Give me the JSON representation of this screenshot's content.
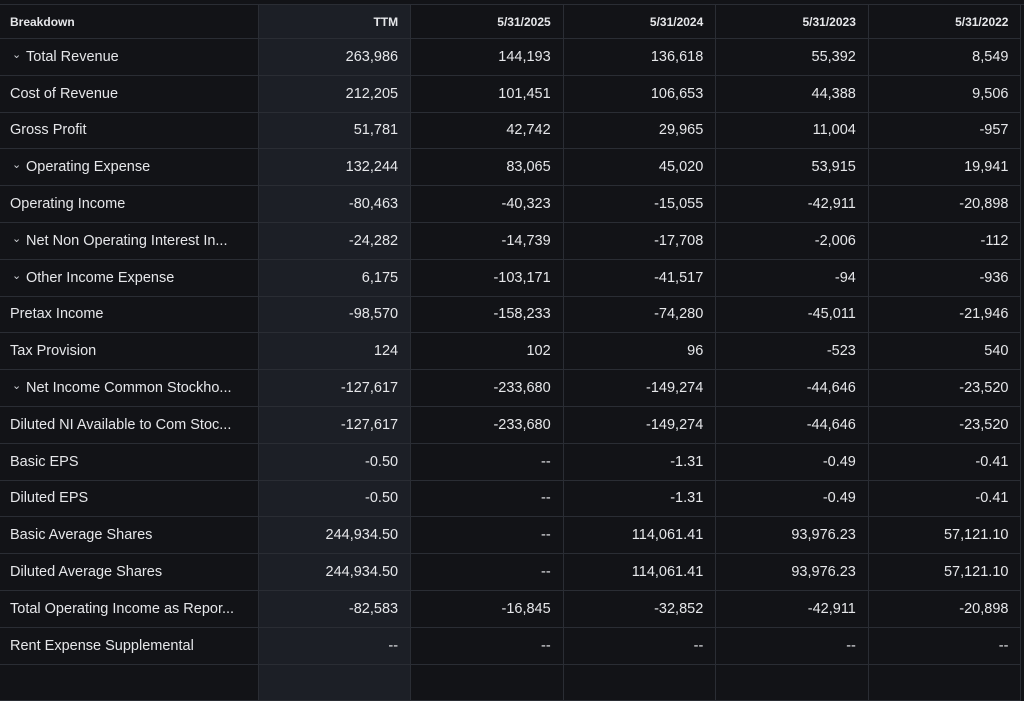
{
  "header": {
    "breakdown": "Breakdown",
    "columns": [
      "TTM",
      "5/31/2025",
      "5/31/2024",
      "5/31/2023",
      "5/31/2022"
    ]
  },
  "rows": [
    {
      "label": "Total Revenue",
      "expandable": true,
      "values": [
        "263,986",
        "144,193",
        "136,618",
        "55,392",
        "8,549"
      ]
    },
    {
      "label": "Cost of Revenue",
      "expandable": false,
      "values": [
        "212,205",
        "101,451",
        "106,653",
        "44,388",
        "9,506"
      ]
    },
    {
      "label": "Gross Profit",
      "expandable": false,
      "values": [
        "51,781",
        "42,742",
        "29,965",
        "11,004",
        "-957"
      ]
    },
    {
      "label": "Operating Expense",
      "expandable": true,
      "values": [
        "132,244",
        "83,065",
        "45,020",
        "53,915",
        "19,941"
      ]
    },
    {
      "label": "Operating Income",
      "expandable": false,
      "values": [
        "-80,463",
        "-40,323",
        "-15,055",
        "-42,911",
        "-20,898"
      ]
    },
    {
      "label": "Net Non Operating Interest In...",
      "expandable": true,
      "values": [
        "-24,282",
        "-14,739",
        "-17,708",
        "-2,006",
        "-112"
      ]
    },
    {
      "label": "Other Income Expense",
      "expandable": true,
      "values": [
        "6,175",
        "-103,171",
        "-41,517",
        "-94",
        "-936"
      ]
    },
    {
      "label": "Pretax Income",
      "expandable": false,
      "values": [
        "-98,570",
        "-158,233",
        "-74,280",
        "-45,011",
        "-21,946"
      ]
    },
    {
      "label": "Tax Provision",
      "expandable": false,
      "values": [
        "124",
        "102",
        "96",
        "-523",
        "540"
      ]
    },
    {
      "label": "Net Income Common Stockho...",
      "expandable": true,
      "values": [
        "-127,617",
        "-233,680",
        "-149,274",
        "-44,646",
        "-23,520"
      ]
    },
    {
      "label": "Diluted NI Available to Com Stoc...",
      "expandable": false,
      "values": [
        "-127,617",
        "-233,680",
        "-149,274",
        "-44,646",
        "-23,520"
      ]
    },
    {
      "label": "Basic EPS",
      "expandable": false,
      "values": [
        "-0.50",
        "--",
        "-1.31",
        "-0.49",
        "-0.41"
      ]
    },
    {
      "label": "Diluted EPS",
      "expandable": false,
      "values": [
        "-0.50",
        "--",
        "-1.31",
        "-0.49",
        "-0.41"
      ]
    },
    {
      "label": "Basic Average Shares",
      "expandable": false,
      "values": [
        "244,934.50",
        "--",
        "114,061.41",
        "93,976.23",
        "57,121.10"
      ]
    },
    {
      "label": "Diluted Average Shares",
      "expandable": false,
      "values": [
        "244,934.50",
        "--",
        "114,061.41",
        "93,976.23",
        "57,121.10"
      ]
    },
    {
      "label": "Total Operating Income as Repor...",
      "expandable": false,
      "values": [
        "-82,583",
        "-16,845",
        "-32,852",
        "-42,911",
        "-20,898"
      ]
    },
    {
      "label": "Rent Expense Supplemental",
      "expandable": false,
      "values": [
        "--",
        "--",
        "--",
        "--",
        "--"
      ]
    }
  ],
  "icons": {
    "expand": "chevron-down-icon"
  },
  "colors": {
    "background": "#121317",
    "ttm_column": "#1c1f26",
    "grid": "#2a2d34",
    "text": "#e6e7ea"
  }
}
